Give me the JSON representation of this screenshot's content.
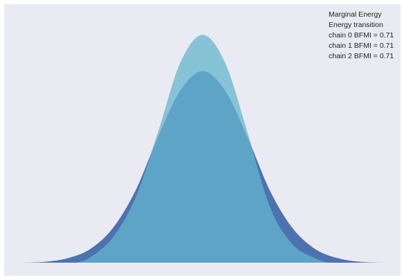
{
  "chart_data": {
    "type": "area",
    "title": "",
    "xlabel": "",
    "ylabel": "",
    "grid": false,
    "legend_position": "top-right",
    "xlim": [
      -4.0,
      4.0
    ],
    "ylim": [
      0,
      0.55
    ],
    "series": [
      {
        "name": "Marginal Energy",
        "color": "#4c72b0",
        "alpha": 1.0,
        "x": [
          -4.0,
          -3.5,
          -3.0,
          -2.5,
          -2.0,
          -1.5,
          -1.0,
          -0.5,
          0.0,
          0.5,
          1.0,
          1.5,
          2.0,
          2.5,
          3.0,
          3.5,
          4.0
        ],
        "y": [
          0.0,
          0.002,
          0.01,
          0.03,
          0.075,
          0.155,
          0.27,
          0.37,
          0.412,
          0.37,
          0.27,
          0.155,
          0.075,
          0.03,
          0.01,
          0.002,
          0.0
        ]
      },
      {
        "name": "Energy transition",
        "color": "#64b5cd",
        "alpha": 0.75,
        "x": [
          -2.8,
          -2.5,
          -2.0,
          -1.5,
          -1.0,
          -0.5,
          0.0,
          0.5,
          1.0,
          1.5,
          2.0,
          2.5,
          2.8
        ],
        "y": [
          0.0,
          0.012,
          0.055,
          0.14,
          0.28,
          0.43,
          0.49,
          0.43,
          0.28,
          0.12,
          0.04,
          0.01,
          0.0
        ]
      }
    ],
    "legend_entries": [
      "Marginal Energy",
      "Energy transition",
      "chain  0 BFMI = 0.71",
      "chain  1 BFMI = 0.71",
      "chain  2 BFMI = 0.71"
    ],
    "colors": {
      "background": "#eaeaf2",
      "text": "#222222"
    }
  }
}
